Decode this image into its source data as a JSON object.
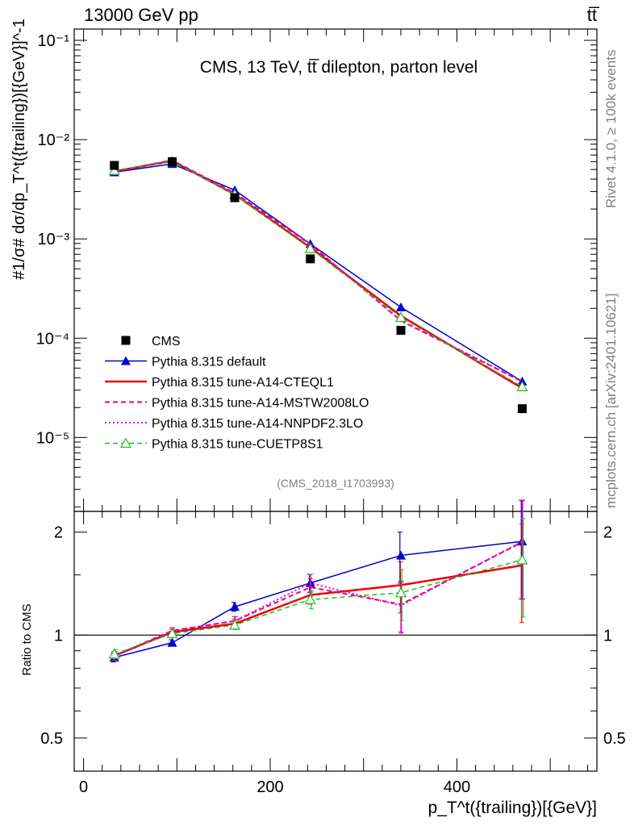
{
  "header": {
    "left": "13000 GeV pp",
    "right": "tt̅"
  },
  "side_text": {
    "rivet": "Rivet 4.1.0, ≥ 100k events",
    "mcplots": "mcplots.cern.ch [arXiv:2401.10621]"
  },
  "chart_data": [
    {
      "type": "line",
      "panel": "main",
      "title": "CMS, 13 TeV, tt̅ dilepton, parton level",
      "watermark": "(CMS_2018_I1703993)",
      "ylabel": "#1/σ# dσ/dp_T^t({trailing})[{GeV}]^-1",
      "yscale": "log",
      "ylim": [
        1.8e-06,
        0.13
      ],
      "xlim": [
        -10,
        550
      ],
      "y_tick_labels": [
        "10⁻⁵",
        "10⁻⁴",
        "10⁻³",
        "10⁻²",
        "10⁻¹"
      ],
      "x": [
        33,
        95,
        162,
        243,
        340,
        470
      ],
      "series": [
        {
          "name": "CMS",
          "style": "square",
          "color": "#000000",
          "values": [
            0.0055,
            0.006,
            0.0026,
            0.00063,
            0.00012,
            1.95e-05
          ]
        },
        {
          "name": "Pythia 8.315 default",
          "style": "solid-triangle",
          "color": "#0000cc",
          "values": [
            0.0047,
            0.0057,
            0.0031,
            0.00089,
            0.000205,
            3.67e-05
          ]
        },
        {
          "name": "Pythia 8.315 tune-A14-CTEQL1",
          "style": "solid-thick",
          "color": "#ee0000",
          "values": [
            0.0048,
            0.0061,
            0.0028,
            0.00082,
            0.000168,
            3.13e-05
          ]
        },
        {
          "name": "Pythia 8.315 tune-A14-MSTW2008LO",
          "style": "dashed",
          "color": "#ee0066",
          "values": [
            0.0048,
            0.0062,
            0.0029,
            0.00088,
            0.00015,
            3.65e-05
          ]
        },
        {
          "name": "Pythia 8.315 tune-A14-NNPDF2.3LO",
          "style": "dotted",
          "color": "#dd00dd",
          "values": [
            0.0048,
            0.0062,
            0.0029,
            0.00089,
            0.00015,
            3.7e-05
          ]
        },
        {
          "name": "Pythia 8.315 tune-CUETP8S1",
          "style": "dashed-open-triangle",
          "color": "#22bb22",
          "values": [
            0.0049,
            0.006,
            0.0028,
            0.0008,
            0.000162,
            3.25e-05
          ]
        }
      ]
    },
    {
      "type": "line",
      "panel": "ratio",
      "ylabel": "Ratio to CMS",
      "xlabel": "p_T^t({trailing})[{GeV}]",
      "yscale": "log",
      "ylim": [
        0.4,
        2.3
      ],
      "xlim": [
        -10,
        550
      ],
      "y_tick_labels": [
        "0.5",
        "1",
        "2"
      ],
      "x_tick_labels": [
        "0",
        "200",
        "400"
      ],
      "reference_line": 1,
      "series": [
        {
          "name": "Pythia 8.315 default",
          "values": [
            0.86,
            0.95,
            1.21,
            1.42,
            1.71,
            1.88
          ]
        },
        {
          "name": "Pythia 8.315 tune-A14-CTEQL1",
          "values": [
            0.87,
            1.02,
            1.08,
            1.31,
            1.4,
            1.6
          ]
        },
        {
          "name": "Pythia 8.315 tune-A14-MSTW2008LO",
          "values": [
            0.87,
            1.03,
            1.1,
            1.38,
            1.23,
            1.87
          ]
        },
        {
          "name": "Pythia 8.315 tune-A14-NNPDF2.3LO",
          "values": [
            0.87,
            1.03,
            1.1,
            1.42,
            1.22,
            1.88
          ]
        },
        {
          "name": "Pythia 8.315 tune-CUETP8S1",
          "values": [
            0.88,
            1.01,
            1.07,
            1.27,
            1.33,
            1.66
          ]
        }
      ]
    }
  ]
}
